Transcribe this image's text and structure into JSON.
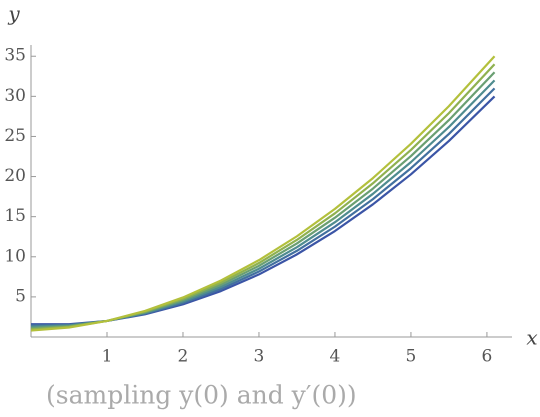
{
  "chart_data": {
    "type": "line",
    "x_label": "x",
    "y_label": "y",
    "caption": "(sampling y(0) and y′(0))",
    "x": [
      0,
      0.5,
      1,
      1.5,
      2,
      2.5,
      3,
      3.5,
      4,
      4.5,
      5,
      5.5,
      6.1
    ],
    "series": [
      {
        "color": "#3b55a6",
        "values": [
          1.6,
          1.59,
          2.0,
          2.83,
          4.07,
          5.73,
          7.8,
          10.3,
          13.21,
          16.54,
          20.28,
          24.44,
          29.99
        ]
      },
      {
        "color": "#42709f",
        "values": [
          1.44,
          1.51,
          2.0,
          2.91,
          4.24,
          5.99,
          8.16,
          10.75,
          13.76,
          17.19,
          21.04,
          25.31,
          30.99
        ]
      },
      {
        "color": "#4f8c8f",
        "values": [
          1.28,
          1.43,
          2.0,
          3.0,
          4.41,
          6.25,
          8.51,
          11.2,
          14.31,
          17.85,
          21.8,
          26.18,
          31.99
        ]
      },
      {
        "color": "#6a9f72",
        "values": [
          1.12,
          1.34,
          2.0,
          3.08,
          4.59,
          6.52,
          8.87,
          11.66,
          14.87,
          18.5,
          22.56,
          27.04,
          33.0
        ]
      },
      {
        "color": "#8fb150",
        "values": [
          0.96,
          1.26,
          2.0,
          3.17,
          4.76,
          6.78,
          9.22,
          12.11,
          15.42,
          19.16,
          23.32,
          27.91,
          34.0
        ]
      },
      {
        "color": "#b3c03c",
        "values": [
          0.8,
          1.18,
          2.0,
          3.25,
          4.93,
          7.04,
          9.58,
          12.56,
          15.97,
          19.81,
          24.08,
          28.78,
          35.0
        ]
      }
    ],
    "xlim": [
      0,
      6.33
    ],
    "ylim": [
      0,
      36.4
    ],
    "xticks": [
      1,
      2,
      3,
      4,
      5,
      6
    ],
    "yticks": [
      5,
      10,
      15,
      20,
      25,
      30,
      35
    ]
  }
}
